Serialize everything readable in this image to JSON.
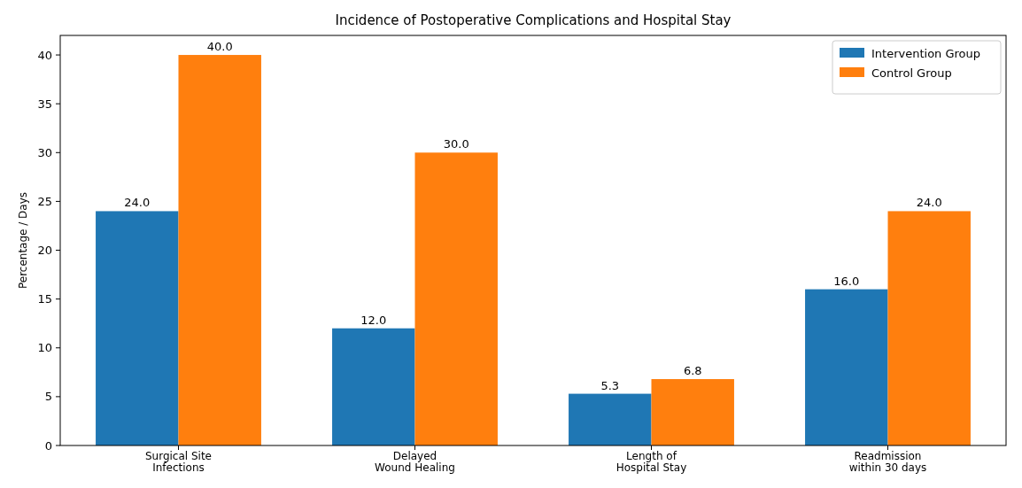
{
  "chart_data": {
    "type": "bar",
    "title": "Incidence of Postoperative Complications and Hospital Stay",
    "ylabel": "Percentage / Days",
    "categories": [
      "Surgical Site\nInfections",
      "Delayed\nWound Healing",
      "Length of\nHospital Stay",
      "Readmission\nwithin 30 days"
    ],
    "series": [
      {
        "name": "Intervention Group",
        "color": "#1f77b4",
        "values": [
          24,
          12,
          5.3,
          16
        ],
        "value_labels": [
          "24.0",
          "12.0",
          "5.3",
          "16.0"
        ]
      },
      {
        "name": "Control Group",
        "color": "#ff7f0e",
        "values": [
          40,
          30,
          6.8,
          24
        ],
        "value_labels": [
          "40.0",
          "30.0",
          "6.8",
          "24.0"
        ]
      }
    ],
    "ylim": [
      0,
      42
    ],
    "yticks": [
      0,
      5,
      10,
      15,
      20,
      25,
      30,
      35,
      40
    ],
    "legend": "top right",
    "grid": false
  }
}
